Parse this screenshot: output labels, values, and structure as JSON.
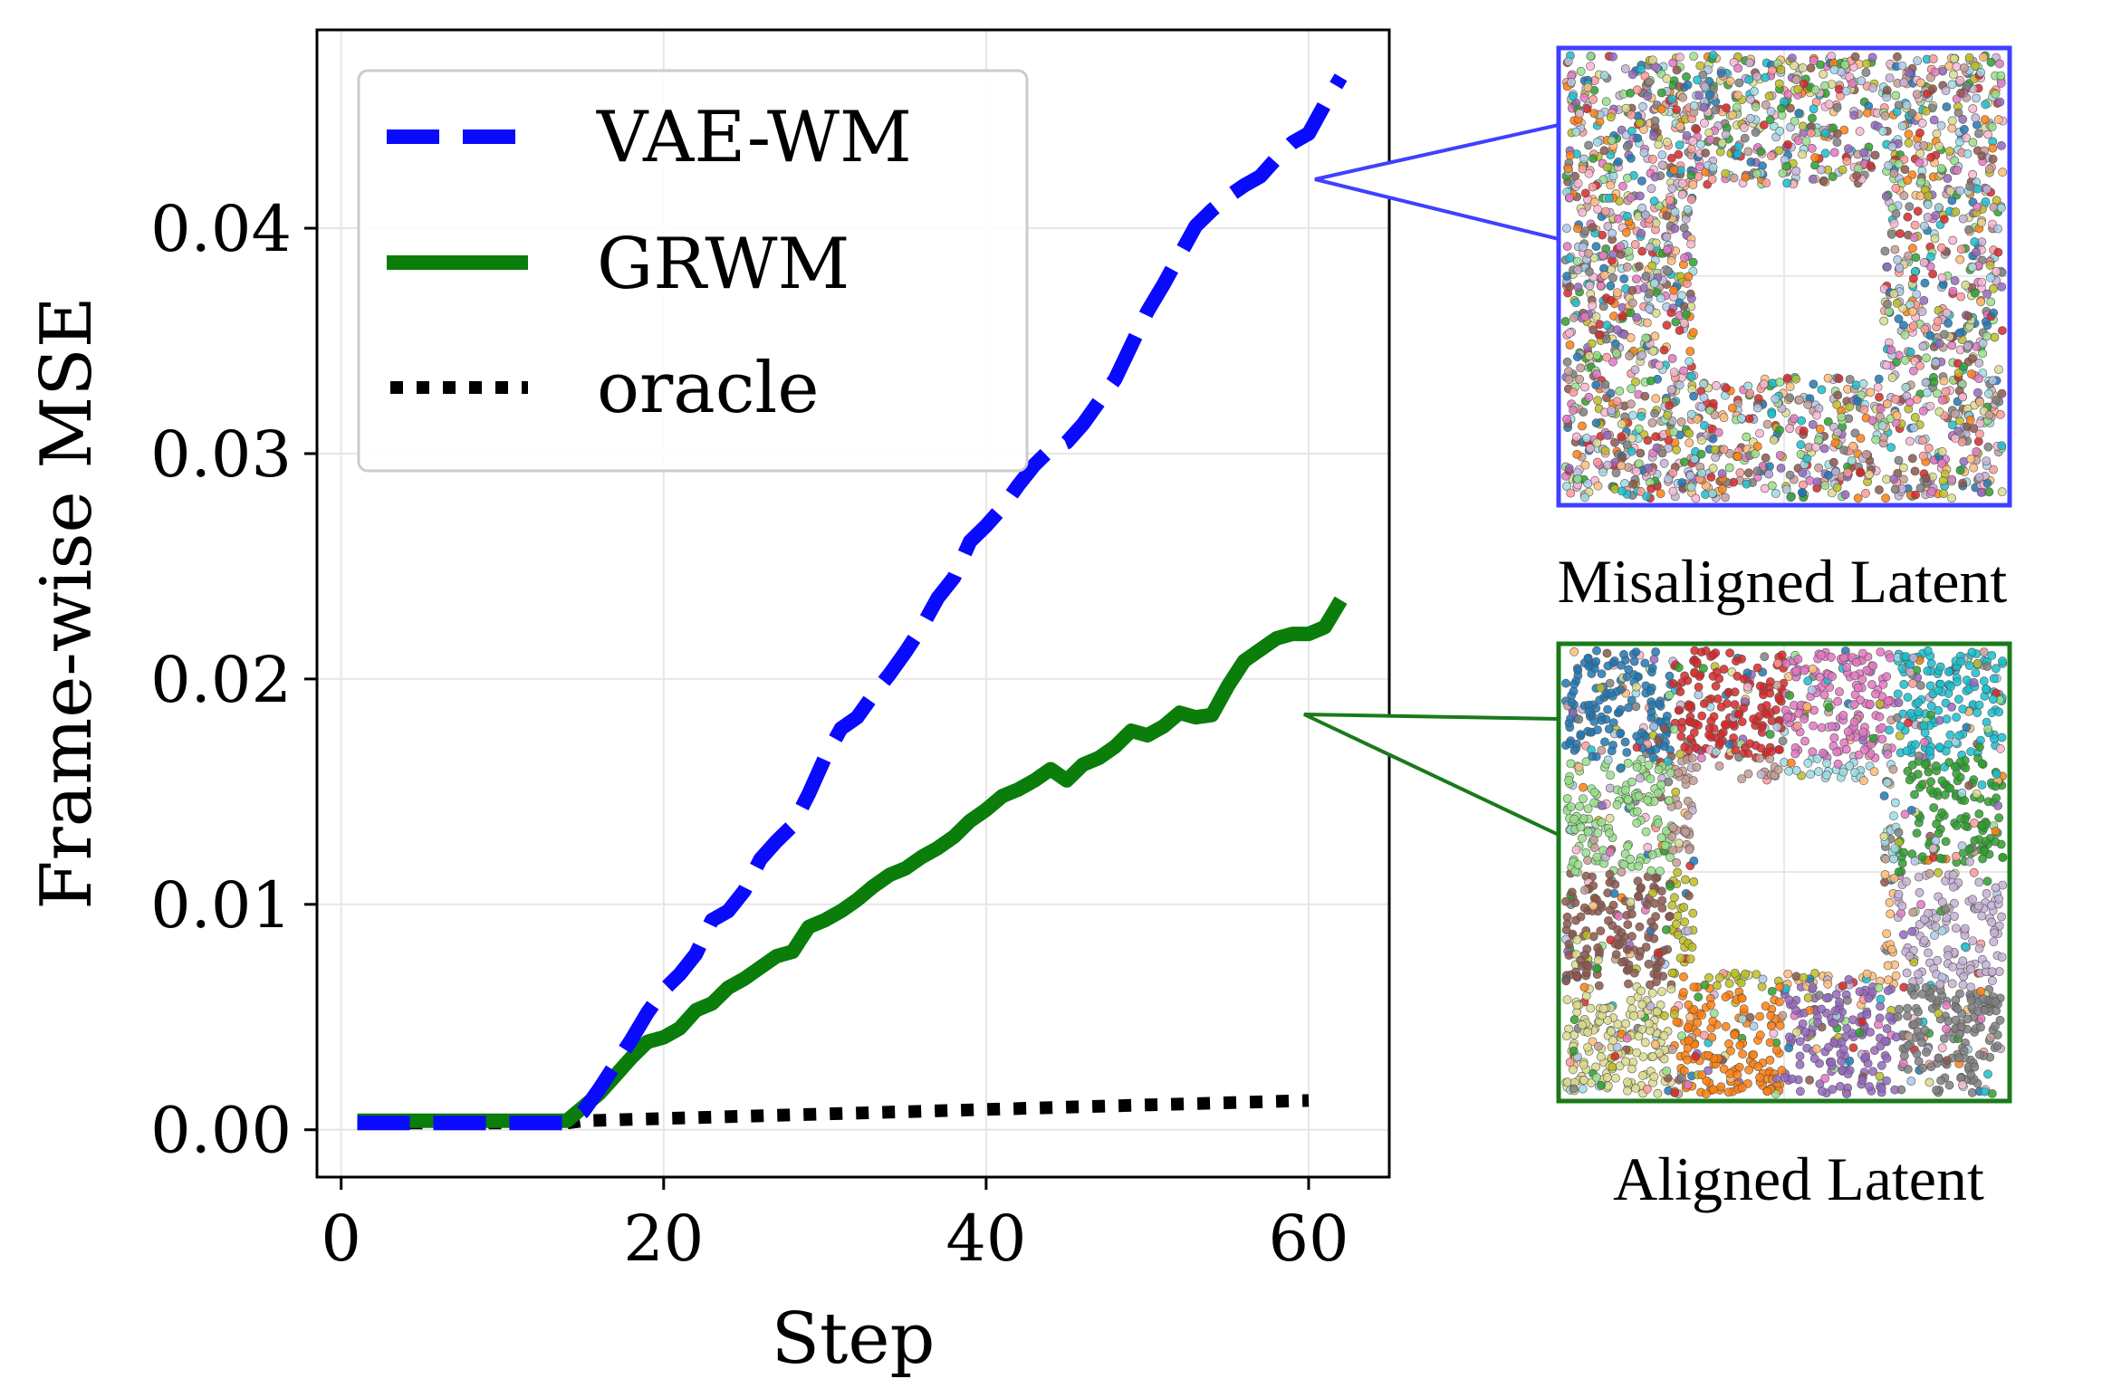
{
  "chart_data": {
    "type": "line",
    "xlabel": "Step",
    "ylabel": "Frame-wise MSE",
    "xlim": [
      -1.5,
      65
    ],
    "ylim": [
      -0.0021,
      0.0488
    ],
    "xticks": [
      0,
      20,
      40,
      60
    ],
    "xtick_labels": [
      "0",
      "20",
      "40",
      "60"
    ],
    "yticks": [
      0.0,
      0.01,
      0.02,
      0.03,
      0.04
    ],
    "ytick_labels": [
      "0.00",
      "0.01",
      "0.02",
      "0.03",
      "0.04"
    ],
    "grid": true,
    "legend_position": "top-left",
    "series": [
      {
        "name": "VAE-WM",
        "style": "dashed",
        "color": "#0a0aff",
        "x": [
          1,
          2,
          3,
          4,
          5,
          6,
          7,
          8,
          9,
          10,
          11,
          12,
          13,
          14,
          15,
          16,
          17,
          18,
          19,
          20,
          21,
          22,
          23,
          24,
          25,
          26,
          27,
          28,
          29,
          30,
          31,
          32,
          33,
          34,
          35,
          36,
          37,
          38,
          39,
          40,
          41,
          42,
          43,
          44,
          45,
          46,
          47,
          48,
          49,
          50,
          51,
          52,
          53,
          54,
          55,
          56,
          57,
          58,
          59,
          60,
          61,
          62
        ],
        "values": [
          0.0003,
          0.0003,
          0.0003,
          0.0003,
          0.0003,
          0.0003,
          0.0003,
          0.0003,
          0.0003,
          0.0003,
          0.0003,
          0.0003,
          0.0003,
          0.0003,
          0.0008,
          0.0018,
          0.0029,
          0.004,
          0.0052,
          0.0062,
          0.0069,
          0.0078,
          0.0093,
          0.0097,
          0.0106,
          0.012,
          0.0128,
          0.0135,
          0.0149,
          0.0165,
          0.0178,
          0.0183,
          0.0193,
          0.0202,
          0.0212,
          0.0223,
          0.0236,
          0.0245,
          0.0261,
          0.0268,
          0.0276,
          0.0286,
          0.0295,
          0.0302,
          0.0305,
          0.0313,
          0.0323,
          0.0333,
          0.0348,
          0.0363,
          0.0375,
          0.0388,
          0.0401,
          0.0408,
          0.0414,
          0.0419,
          0.0423,
          0.0431,
          0.0438,
          0.0442,
          0.0455,
          0.0467
        ]
      },
      {
        "name": "GRWM",
        "style": "solid",
        "color": "#0a7d0a",
        "x": [
          1,
          2,
          3,
          4,
          5,
          6,
          7,
          8,
          9,
          10,
          11,
          12,
          13,
          14,
          15,
          16,
          17,
          18,
          19,
          20,
          21,
          22,
          23,
          24,
          25,
          26,
          27,
          28,
          29,
          30,
          31,
          32,
          33,
          34,
          35,
          36,
          37,
          38,
          39,
          40,
          41,
          42,
          43,
          44,
          45,
          46,
          47,
          48,
          49,
          50,
          51,
          52,
          53,
          54,
          55,
          56,
          57,
          58,
          59,
          60,
          61,
          62
        ],
        "values": [
          0.0004,
          0.0004,
          0.0004,
          0.0004,
          0.0004,
          0.0004,
          0.0004,
          0.0004,
          0.0004,
          0.0004,
          0.0004,
          0.0004,
          0.0004,
          0.0004,
          0.001,
          0.0016,
          0.0024,
          0.0032,
          0.0039,
          0.0041,
          0.0045,
          0.0053,
          0.0056,
          0.0063,
          0.0067,
          0.0072,
          0.0077,
          0.0079,
          0.009,
          0.0093,
          0.0097,
          0.0102,
          0.0108,
          0.0113,
          0.0116,
          0.0121,
          0.0125,
          0.013,
          0.0137,
          0.0142,
          0.0148,
          0.0151,
          0.0155,
          0.016,
          0.0155,
          0.0162,
          0.0165,
          0.017,
          0.0177,
          0.0175,
          0.0179,
          0.0185,
          0.0183,
          0.0184,
          0.0197,
          0.0208,
          0.0213,
          0.0218,
          0.022,
          0.022,
          0.0223,
          0.0235
        ]
      },
      {
        "name": "oracle",
        "style": "dotted",
        "color": "#000000",
        "x": [
          1,
          5,
          10,
          14,
          15,
          20,
          25,
          30,
          35,
          40,
          45,
          50,
          55,
          60
        ],
        "values": [
          0.0003,
          0.0003,
          0.0003,
          0.0003,
          0.0004,
          0.0005,
          0.0006,
          0.0007,
          0.0008,
          0.0009,
          0.001,
          0.0011,
          0.0012,
          0.0013
        ]
      }
    ],
    "annotations": [
      {
        "label": "Misaligned Latent",
        "points_to_series": "VAE-WM",
        "border_color": "#4040ff"
      },
      {
        "label": "Aligned Latent",
        "points_to_series": "GRWM",
        "border_color": "#1a7a1a"
      }
    ]
  },
  "panels": {
    "misaligned": {
      "label": "Misaligned Latent",
      "border_color": "#4040ff"
    },
    "aligned": {
      "label": "Aligned Latent",
      "border_color": "#1a7a1a"
    }
  },
  "palette": [
    "#1f77b4",
    "#ff7f0e",
    "#2ca02c",
    "#d62728",
    "#9467bd",
    "#8c564b",
    "#e377c2",
    "#7f7f7f",
    "#bcbd22",
    "#17becf",
    "#aec7e8",
    "#ffbb78",
    "#98df8a",
    "#ff9896",
    "#c5b0d5",
    "#c49c94",
    "#f7b6d2",
    "#dbdb8d",
    "#9edae5"
  ]
}
